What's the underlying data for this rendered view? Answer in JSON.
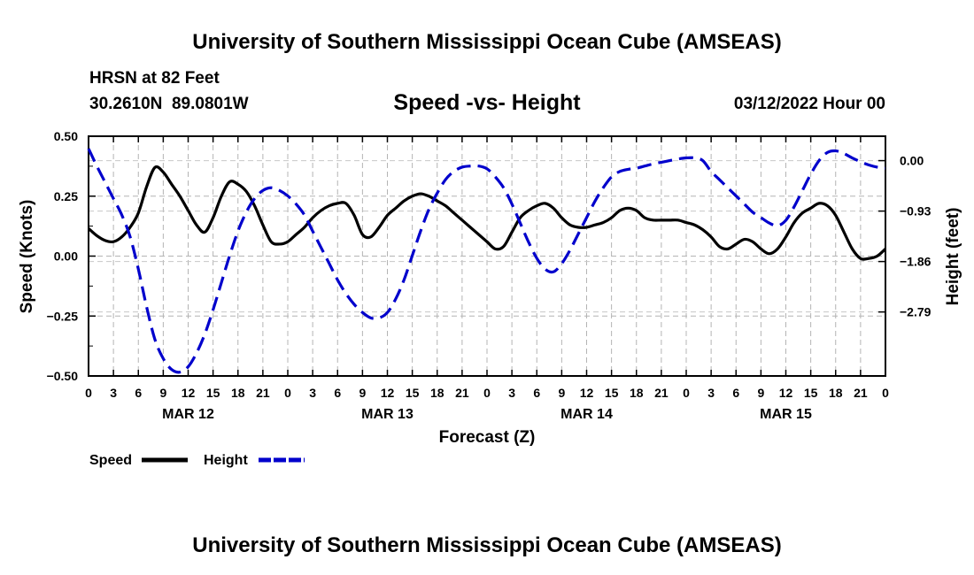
{
  "page": {
    "title": "University of Southern Mississippi Ocean Cube (AMSEAS)",
    "footer_title": "University of Southern Mississippi Ocean Cube (AMSEAS)",
    "station_line": "HRSN at 82 Feet",
    "coords": "30.2610N  89.0801W",
    "date_line": "03/12/2022 Hour 00"
  },
  "chart_data": {
    "type": "line",
    "title": "Speed -vs- Height",
    "xlabel": "Forecast (Z)",
    "ylabel": "Speed (Knots)",
    "y2label": "Height (feet)",
    "ylim": [
      -0.5,
      0.5
    ],
    "y2lim": [
      -3.97,
      0.45
    ],
    "x_range_hours": [
      0,
      96
    ],
    "yticks": [
      -0.5,
      -0.25,
      0.0,
      0.25,
      0.5
    ],
    "ytick_labels": [
      "−0.50",
      "−0.25",
      "0.00",
      "0.25",
      "0.50"
    ],
    "y2ticks": [
      0.0,
      -0.93,
      -1.86,
      -2.79
    ],
    "y2tick_labels": [
      "0.00",
      "−0.93",
      "−1.86",
      "−2.79"
    ],
    "xtick_hours": [
      0,
      3,
      6,
      9,
      12,
      15,
      18,
      21,
      24,
      27,
      30,
      33,
      36,
      39,
      42,
      45,
      48,
      51,
      54,
      57,
      60,
      63,
      66,
      69,
      72,
      75,
      78,
      81,
      84,
      87,
      90,
      93,
      96
    ],
    "xtick_labels": [
      "0",
      "3",
      "6",
      "9",
      "12",
      "15",
      "18",
      "21",
      "0",
      "3",
      "6",
      "9",
      "12",
      "15",
      "18",
      "21",
      "0",
      "3",
      "6",
      "9",
      "12",
      "15",
      "18",
      "21",
      "0",
      "3",
      "6",
      "9",
      "12",
      "15",
      "18",
      "21",
      "0"
    ],
    "day_labels": [
      {
        "hour": 12,
        "label": "MAR 12"
      },
      {
        "hour": 36,
        "label": "MAR 13"
      },
      {
        "hour": 60,
        "label": "MAR 14"
      },
      {
        "hour": 84,
        "label": "MAR 15"
      }
    ],
    "grid": true,
    "legend": [
      "Speed",
      "Height"
    ],
    "series": [
      {
        "name": "Speed",
        "axis": "left",
        "color": "#000000",
        "dash": "solid",
        "x": [
          0,
          1,
          2,
          3,
          4,
          5,
          6,
          7,
          8,
          9,
          10,
          11,
          12,
          13,
          14,
          15,
          16,
          17,
          18,
          19,
          20,
          21,
          22,
          23,
          24,
          25,
          26,
          27,
          28,
          29,
          30,
          31,
          32,
          33,
          34,
          35,
          36,
          37,
          38,
          39,
          40,
          41,
          42,
          43,
          44,
          45,
          46,
          47,
          48,
          49,
          50,
          51,
          52,
          53,
          54,
          55,
          56,
          57,
          58,
          59,
          60,
          61,
          62,
          63,
          64,
          65,
          66,
          67,
          68,
          69,
          70,
          71,
          72,
          73,
          74,
          75,
          76,
          77,
          78,
          79,
          80,
          81,
          82,
          83,
          84,
          85,
          86,
          87,
          88,
          89,
          90,
          91,
          92,
          93,
          94,
          95,
          96
        ],
        "values": [
          0.115,
          0.085,
          0.065,
          0.06,
          0.08,
          0.12,
          0.18,
          0.29,
          0.37,
          0.35,
          0.3,
          0.25,
          0.19,
          0.13,
          0.1,
          0.16,
          0.25,
          0.31,
          0.3,
          0.27,
          0.21,
          0.13,
          0.06,
          0.05,
          0.06,
          0.09,
          0.12,
          0.16,
          0.19,
          0.21,
          0.22,
          0.22,
          0.17,
          0.09,
          0.08,
          0.12,
          0.17,
          0.2,
          0.23,
          0.25,
          0.26,
          0.25,
          0.23,
          0.21,
          0.18,
          0.15,
          0.12,
          0.09,
          0.06,
          0.03,
          0.04,
          0.1,
          0.16,
          0.19,
          0.21,
          0.22,
          0.2,
          0.16,
          0.13,
          0.12,
          0.12,
          0.13,
          0.14,
          0.16,
          0.19,
          0.2,
          0.19,
          0.16,
          0.15,
          0.15,
          0.15,
          0.15,
          0.14,
          0.13,
          0.11,
          0.08,
          0.04,
          0.03,
          0.05,
          0.07,
          0.06,
          0.03,
          0.01,
          0.03,
          0.08,
          0.14,
          0.18,
          0.2,
          0.22,
          0.21,
          0.17,
          0.1,
          0.03,
          -0.01,
          -0.01,
          0.0,
          0.03
        ]
      },
      {
        "name": "Height",
        "axis": "right",
        "color": "#0000cc",
        "dash": "dashed",
        "x": [
          0,
          1,
          2,
          3,
          4,
          5,
          6,
          7,
          8,
          9,
          10,
          11,
          12,
          13,
          14,
          15,
          16,
          17,
          18,
          19,
          20,
          21,
          22,
          23,
          24,
          25,
          26,
          27,
          28,
          29,
          30,
          31,
          32,
          33,
          34,
          35,
          36,
          37,
          38,
          39,
          40,
          41,
          42,
          43,
          44,
          45,
          46,
          47,
          48,
          49,
          50,
          51,
          52,
          53,
          54,
          55,
          56,
          57,
          58,
          59,
          60,
          61,
          62,
          63,
          64,
          65,
          66,
          67,
          68,
          69,
          70,
          71,
          72,
          73,
          74,
          75,
          76,
          77,
          78,
          79,
          80,
          81,
          82,
          83,
          84,
          85,
          86,
          87,
          88,
          89,
          90,
          91,
          92,
          93,
          94,
          95,
          96
        ],
        "values": [
          0.22,
          -0.1,
          -0.4,
          -0.7,
          -1.0,
          -1.4,
          -2.0,
          -2.7,
          -3.3,
          -3.65,
          -3.85,
          -3.9,
          -3.8,
          -3.55,
          -3.2,
          -2.75,
          -2.25,
          -1.75,
          -1.3,
          -0.95,
          -0.7,
          -0.55,
          -0.5,
          -0.55,
          -0.65,
          -0.8,
          -1.0,
          -1.3,
          -1.6,
          -1.9,
          -2.2,
          -2.45,
          -2.65,
          -2.8,
          -2.9,
          -2.9,
          -2.8,
          -2.55,
          -2.2,
          -1.75,
          -1.3,
          -0.9,
          -0.6,
          -0.35,
          -0.2,
          -0.12,
          -0.1,
          -0.1,
          -0.15,
          -0.3,
          -0.5,
          -0.8,
          -1.15,
          -1.5,
          -1.8,
          -2.0,
          -2.05,
          -1.9,
          -1.65,
          -1.35,
          -1.05,
          -0.75,
          -0.5,
          -0.3,
          -0.2,
          -0.16,
          -0.14,
          -0.1,
          -0.06,
          -0.03,
          0.0,
          0.03,
          0.05,
          0.05,
          0.0,
          -0.2,
          -0.35,
          -0.5,
          -0.65,
          -0.8,
          -0.95,
          -1.05,
          -1.15,
          -1.2,
          -1.1,
          -0.85,
          -0.55,
          -0.25,
          0.0,
          0.15,
          0.18,
          0.13,
          0.05,
          -0.02,
          -0.08,
          -0.12,
          -0.14
        ]
      }
    ]
  }
}
